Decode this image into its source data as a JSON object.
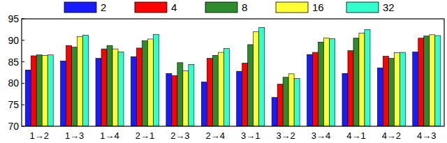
{
  "chart_data": {
    "type": "bar",
    "categories": [
      "1→2",
      "1→3",
      "1→4",
      "2→1",
      "2→3",
      "2→4",
      "3→1",
      "3→2",
      "3→4",
      "4→1",
      "4→2",
      "4→3"
    ],
    "series": [
      {
        "name": "2",
        "color": "#1a1aff",
        "values": [
          83.1,
          85.2,
          85.8,
          86.2,
          82.3,
          80.3,
          82.8,
          76.7,
          86.7,
          82.3,
          83.6,
          87.3
        ]
      },
      {
        "name": "4",
        "color": "#ff0000",
        "values": [
          86.4,
          88.8,
          88.0,
          88.2,
          81.8,
          85.8,
          84.7,
          79.8,
          87.2,
          87.6,
          86.3,
          90.5
        ]
      },
      {
        "name": "8",
        "color": "#2e8b2e",
        "values": [
          86.6,
          88.4,
          88.8,
          89.9,
          84.8,
          86.5,
          89.0,
          81.4,
          89.6,
          90.5,
          85.8,
          91.0
        ]
      },
      {
        "name": "16",
        "color": "#ffff33",
        "values": [
          86.5,
          90.9,
          88.0,
          90.3,
          82.9,
          87.2,
          92.0,
          82.2,
          90.5,
          91.7,
          87.1,
          91.3
        ]
      },
      {
        "name": "32",
        "color": "#33ffcc",
        "values": [
          86.6,
          91.2,
          87.3,
          91.4,
          84.4,
          88.1,
          93.0,
          81.1,
          90.4,
          92.5,
          87.2,
          91.1
        ]
      }
    ],
    "ylim": [
      70,
      95
    ],
    "yticks": [
      70,
      75,
      80,
      85,
      90,
      95
    ],
    "grid": false,
    "legend": "top"
  }
}
